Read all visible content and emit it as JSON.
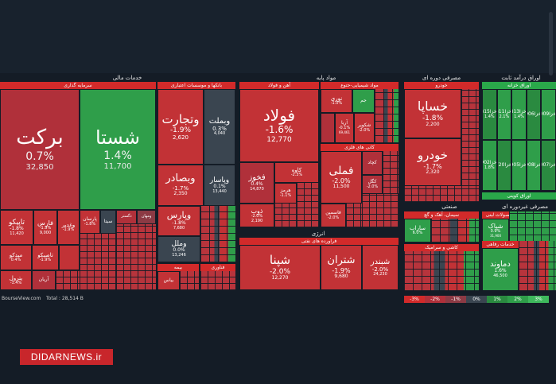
{
  "sections": {
    "financial": "خدمات مالی",
    "base_materials": "مواد پایه",
    "periodic_consumer": "مصرفی دوره ای",
    "fixed_income": "اوراق درآمد ثابت",
    "industrial": "صنعتی",
    "non_periodic": "مصرفی غیردوره ای",
    "energy": "انرژی"
  },
  "subheaders": {
    "investment": "سرمایه گذاری",
    "banks": "بانکها و موسسات اعتباری",
    "iron_steel": "آهن و فولاد",
    "chemicals": "مواد شیمیایی-حتوع",
    "non_metal": "کانی های فلزی",
    "automotive": "خودرو",
    "treasury": "اوراق خزانه",
    "coupon": "اوراق کوپنی",
    "cement": "سیمان، آهک و گچ",
    "dairy": "محصولات لبنی",
    "services": "خدمات رفاهی",
    "refinery": "فراورده های نفتی",
    "insurance": "بیمه",
    "engineering": "کاشی و سرامیک",
    "petchem_services": "خدمات فنی و مهندسی",
    "tech": "فناوری"
  },
  "tiles": {
    "barkat": {
      "name": "برکت",
      "pct": "0.7%",
      "price": "32,850"
    },
    "shasta": {
      "name": "شستا",
      "pct": "1.4%",
      "price": "11,700"
    },
    "vtejarat": {
      "name": "وتجارت",
      "pct": "-1.9%",
      "price": "2,620"
    },
    "vbmellat": {
      "name": "وبملت",
      "pct": "0.3%",
      "price": "4,040"
    },
    "vbsader": {
      "name": "وبصادر",
      "pct": "-1.7%",
      "price": "2,350"
    },
    "vpasar": {
      "name": "وپاسار",
      "pct": "0.1%",
      "price": "13,440"
    },
    "vpars": {
      "name": "وپارس",
      "pct": "-1.8%",
      "price": "7,680"
    },
    "vmellal": {
      "name": "وملل",
      "pct": "0.0%",
      "price": "13,246"
    },
    "foolad": {
      "name": "فولاد",
      "pct": "-1.6%",
      "price": "12,770"
    },
    "fkhooz": {
      "name": "فخوز",
      "pct": "0.4%",
      "price": "14,870"
    },
    "zob": {
      "name": "ذوب",
      "pct": "-2.0%",
      "price": "2,190"
    },
    "kave": {
      "name": "کاوه",
      "pct": "-2.3%",
      "price": ""
    },
    "hormoz": {
      "name": "هرمز",
      "pct": "-1.1%",
      "price": ""
    },
    "fmeli": {
      "name": "فملی",
      "pct": "-2.0%",
      "price": "11,500"
    },
    "fasmin": {
      "name": "فاسمین",
      "pct": "-2.0%",
      "price": ""
    },
    "khsapa": {
      "name": "خساپا",
      "pct": "-1.8%",
      "price": "2,200"
    },
    "khodro": {
      "name": "خودرو",
      "pct": "-1.7%",
      "price": "2,320"
    },
    "shapna": {
      "name": "شپنا",
      "pct": "-2.0%",
      "price": "12,270"
    },
    "shetran": {
      "name": "شتران",
      "pct": "-1.9%",
      "price": "9,680"
    },
    "shebandar": {
      "name": "شبندر",
      "pct": "-2.0%",
      "price": "24,230"
    },
    "tapiko": {
      "name": "تاپیکو",
      "pct": "-1.8%",
      "price": "11,420"
    },
    "fars": {
      "name": "فارس",
      "pct": "-1.9%",
      "price": "9,000"
    },
    "vghadir": {
      "name": "وغدیر",
      "pct": "-1.9%",
      "price": ""
    },
    "parsan": {
      "name": "پارسان",
      "pct": "-1.8%",
      "price": ""
    },
    "sita": {
      "name": "سیتا",
      "pct": "",
      "price": ""
    },
    "dgostar": {
      "name": "دگستر",
      "pct": "",
      "price": ""
    },
    "vmahan": {
      "name": "ومهان",
      "pct": "",
      "price": ""
    },
    "midko": {
      "name": "میدکو",
      "pct": "0.4%",
      "price": ""
    },
    "tapiko2": {
      "name": "تاصیکو",
      "pct": "-1.9%",
      "price": ""
    },
    "petrol": {
      "name": "پترول",
      "pct": "-1.4%",
      "price": ""
    },
    "aryan": {
      "name": "آریان",
      "pct": "",
      "price": ""
    },
    "saraab": {
      "name": "ساراب",
      "pct": "6.0%",
      "price": ""
    },
    "shpak": {
      "name": "شپاک",
      "pct": "0.9%",
      "price": "31,900"
    },
    "damavand": {
      "name": "دماوند",
      "pct": "1.6%",
      "price": "46,500"
    },
    "nouri": {
      "name": "نوری",
      "pct": "-1.0%",
      "price": ""
    },
    "arya": {
      "name": "آریا",
      "pct": "-0.1%",
      "price": "69,461"
    },
    "jam": {
      "name": "جم",
      "pct": "",
      "price": ""
    },
    "shekoria": {
      "name": "شکویر",
      "pct": "-2.0%",
      "price": ""
    },
    "kchad": {
      "name": "کچاد",
      "pct": "",
      "price": ""
    },
    "kgol": {
      "name": "کگل",
      "pct": "-2.0%",
      "price": ""
    },
    "vbime": {
      "name": "بیاس",
      "pct": "",
      "price": ""
    }
  },
  "treasury_labels": [
    "اخزا815",
    "اخزا811",
    "اخزا813",
    "اخزا906",
    "اخزا909",
    "اخزا902",
    "اخزا720",
    "اخزا905",
    "اخزا908",
    "اخزا907"
  ],
  "treasury_pcts": [
    "1.4%",
    "2.1%",
    "1.4%",
    "",
    "",
    "1.8%",
    "",
    "",
    "",
    ""
  ],
  "footer": {
    "site": "BourseView.com",
    "total": "Total : 28,514 B"
  },
  "legend": [
    "-3%",
    "-2%",
    "-1%",
    "0%",
    "1%",
    "2%",
    "3%"
  ],
  "brand": "DIDARNEWS.ir",
  "colors": {
    "red": "#d22a2a",
    "green": "#2aa84a",
    "bg": "#141c26",
    "brand": "#c8262b"
  }
}
